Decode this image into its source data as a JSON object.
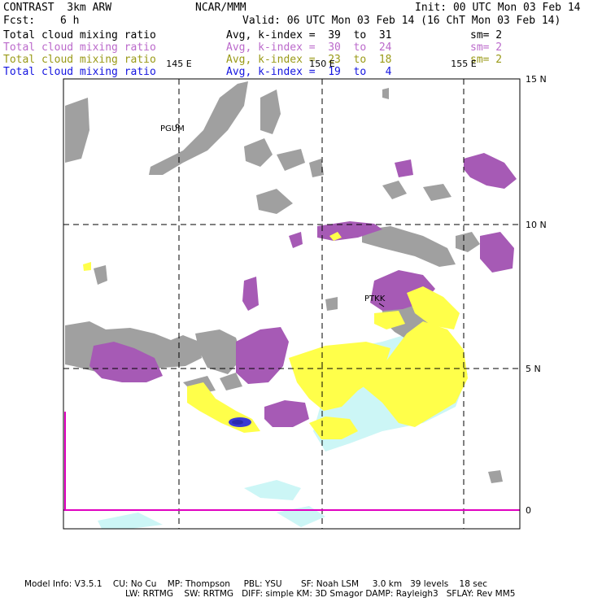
{
  "header": {
    "model": "CONTRAST  3km ARW",
    "org": "NCAR/MMM",
    "init": "Init: 00 UTC Mon 03 Feb 14",
    "fcst_label": "Fcst:",
    "fcst_value": "6 h",
    "valid": "Valid: 06 UTC Mon 03 Feb 14 (16 ChT Mon 03 Feb 14)"
  },
  "legend": [
    {
      "field": "Total cloud mixing ratio",
      "avg": "Avg, k-index =  39  to  31",
      "sm": "sm= 2",
      "color": "#000000"
    },
    {
      "field": "Total cloud mixing ratio",
      "avg": "Avg, k-index =  30  to  24",
      "sm": "sm= 2",
      "color": "#bb6acb"
    },
    {
      "field": "Total cloud mixing ratio",
      "avg": "Avg, k-index =  23  to  18",
      "sm": "sm= 2",
      "color": "#9a9a18"
    },
    {
      "field": "Total cloud mixing ratio",
      "avg": "Avg, k-index =  19  to   4",
      "sm": "",
      "color": "#1515e0"
    }
  ],
  "map": {
    "lon_labels": [
      "145 E",
      "150 E",
      "155 E"
    ],
    "lat_labels": [
      "15 N",
      "10 N",
      "5 N",
      "0"
    ],
    "stations": [
      "PGUM",
      "PTKK"
    ],
    "colors": {
      "high_cloud": "#a0a0a0",
      "mid_cloud": "#a65ab5",
      "low_cloud": "#ffff4a",
      "lowest_cloud": "#ccf6f6",
      "core": "#3a3ad4",
      "line": "#e000c0"
    }
  },
  "footer": {
    "line1": "Model Info: V3.5.1    CU: No Cu    MP: Thompson     PBL: YSU       SF: Noah LSM     3.0 km   39 levels    18 sec",
    "line2": "LW: RRTMG    SW: RRTMG   DIFF: simple KM: 3D Smagor DAMP: Rayleigh3   SFLAY: Rev MM5"
  }
}
